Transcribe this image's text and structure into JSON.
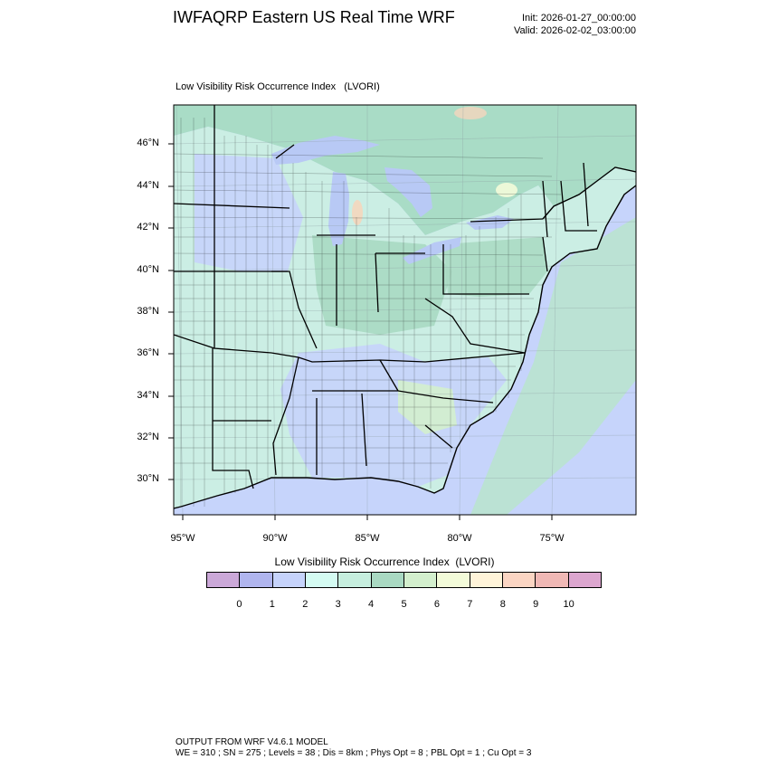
{
  "header": {
    "title": "IWFAQRP Eastern US Real Time WRF",
    "init": "Init: 2026-01-27_00:00:00",
    "valid": "Valid: 2026-02-02_03:00:00"
  },
  "plot": {
    "title": "Low Visibility Risk Occurrence Index   (LVORI)",
    "lat_labels": [
      "46°N",
      "44°N",
      "42°N",
      "40°N",
      "38°N",
      "36°N",
      "34°N",
      "32°N",
      "30°N"
    ],
    "lon_labels": [
      "95°W",
      "90°W",
      "85°W",
      "80°W",
      "75°W"
    ],
    "colors": {
      "ocean": "#c6d4fb",
      "land_low": "#cbeee4",
      "land_mid": "#a9dcc6",
      "land_high": "#b4e3c5",
      "peak": "#f5d6bd",
      "lake": "#b8c9f5"
    }
  },
  "colorbar": {
    "title": "Low Visibility Risk Occurrence Index  (LVORI)",
    "colors": [
      "#cba8d8",
      "#b0b5ee",
      "#c6d3fb",
      "#d4fbf2",
      "#c6eede",
      "#a9d9c2",
      "#d3efcd",
      "#f3fbd9",
      "#fff4d9",
      "#fbd5c3",
      "#f0b8b5",
      "#dca6cf"
    ],
    "tick_labels": [
      "0",
      "1",
      "2",
      "3",
      "4",
      "5",
      "6",
      "7",
      "8",
      "9",
      "10"
    ]
  },
  "footer": {
    "line1": "OUTPUT FROM WRF V4.6.1 MODEL",
    "line2": "WE = 310 ; SN = 275 ; Levels = 38 ; Dis = 8km ; Phys Opt = 8 ; PBL Opt = 1 ; Cu Opt = 3"
  }
}
